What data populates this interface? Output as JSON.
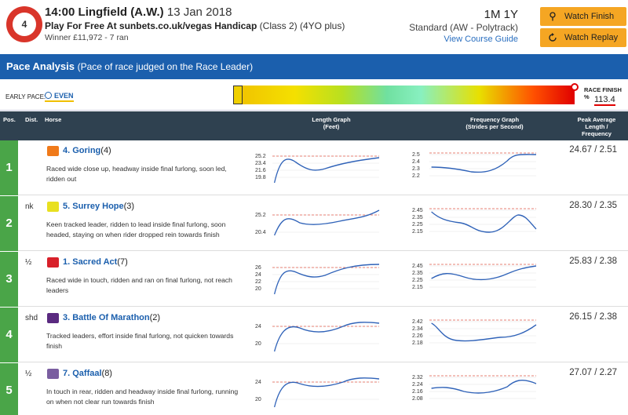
{
  "header": {
    "race_number": "4",
    "time_course": "14:00 Lingfield (A.W.)",
    "date": "13 Jan 2018",
    "race_name_bold": "Play For Free At sunbets.co.uk/vegas Handicap",
    "race_class": "(Class 2) (4YO plus)",
    "winner": "Winner £11,972 - 7 ran",
    "distance": "1M 1Y",
    "going": "Standard (AW - Polytrack)",
    "course_guide": "View Course Guide",
    "watch_finish": "Watch Finish",
    "watch_replay": "Watch Replay"
  },
  "pace": {
    "title": "Pace Analysis",
    "subtitle": "(Pace of race judged on the Race Leader)",
    "early_pace_label": "EARLY PACE:",
    "early_pace_value": "EVEN",
    "race_finish_label": "RACE FINISH %",
    "race_finish_value": "113.4"
  },
  "table": {
    "headers": {
      "pos": "Pos.",
      "dist": "Dist.",
      "horse": "Horse",
      "length_graph": "Length Graph",
      "length_unit": "(Feet)",
      "freq_graph": "Frequency Graph",
      "freq_unit": "(Strides per Second)",
      "peak": "Peak Average",
      "peak2": "Length /",
      "peak3": "Frequency"
    },
    "rows": [
      {
        "pos": "1",
        "dist": "",
        "number_name": "4. Goring",
        "draw": "(4)",
        "silk_color": "#f07a1a",
        "comment": "Raced wide close up, headway inside final furlong, soon led, ridden out",
        "peak": "24.67 / 2.51",
        "len_ticks": [
          "25.2",
          "23.4",
          "21.6",
          "19.8"
        ],
        "freq_ticks": [
          "2.5",
          "2.4",
          "2.3",
          "2.2"
        ]
      },
      {
        "pos": "2",
        "dist": "nk",
        "number_name": "5. Surrey Hope",
        "draw": "(3)",
        "silk_color": "#e8e020",
        "comment": "Keen tracked leader, ridden to lead inside final furlong, soon headed, staying on when rider dropped rein towards finish",
        "peak": "28.30 / 2.35",
        "len_ticks": [
          "25.2",
          "20.4"
        ],
        "freq_ticks": [
          "2.45",
          "2.35",
          "2.25",
          "2.15"
        ]
      },
      {
        "pos": "3",
        "dist": "½",
        "number_name": "1. Sacred Act",
        "draw": "(7)",
        "silk_color": "#d8202a",
        "comment": "Raced wide in touch, ridden and ran on final furlong, not reach leaders",
        "peak": "25.83 / 2.38",
        "len_ticks": [
          "26",
          "24",
          "22",
          "20"
        ],
        "freq_ticks": [
          "2.45",
          "2.35",
          "2.25",
          "2.15"
        ]
      },
      {
        "pos": "4",
        "dist": "shd",
        "number_name": "3. Battle Of Marathon",
        "draw": "(2)",
        "silk_color": "#5a2a80",
        "comment": "Tracked leaders, effort inside final furlong, not quicken towards finish",
        "peak": "26.15 / 2.38",
        "len_ticks": [
          "24",
          "20"
        ],
        "freq_ticks": [
          "2.42",
          "2.34",
          "2.26",
          "2.18"
        ]
      },
      {
        "pos": "5",
        "dist": "½",
        "number_name": "7. Qaffaal",
        "draw": "(8)",
        "silk_color": "#7a5ea0",
        "comment": "In touch in rear, ridden and headway inside final furlong, running on when not clear run towards finish",
        "peak": "27.07 / 2.27",
        "len_ticks": [
          "24",
          "20"
        ],
        "freq_ticks": [
          "2.32",
          "2.24",
          "2.16",
          "2.08"
        ]
      }
    ]
  }
}
